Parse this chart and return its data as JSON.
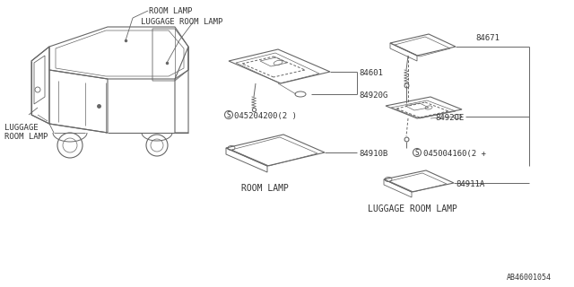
{
  "bg_color": "#ffffff",
  "line_color": "#666666",
  "text_color": "#333333",
  "diagram_id": "AB46001054",
  "parts": {
    "room_lamp_assembly": "84601",
    "bulb_room": "84920G",
    "screw_room": "045204200(2 )",
    "lens_room": "84910B",
    "luggage_bracket": "84671",
    "bulb_luggage": "84920E",
    "screw_luggage": "045004160(2 +",
    "lens_luggage": "84911A"
  },
  "labels": {
    "room_lamp": "ROOM LAMP",
    "luggage_room_lamp": "LUGGAGE ROOM LAMP",
    "luggage_label_line1": "LUGGAGE",
    "luggage_label_line2": "ROOM LAMP",
    "room_lamp_section": "ROOM LAMP",
    "luggage_lamp_section": "LUGGAGE ROOM LAMP"
  }
}
